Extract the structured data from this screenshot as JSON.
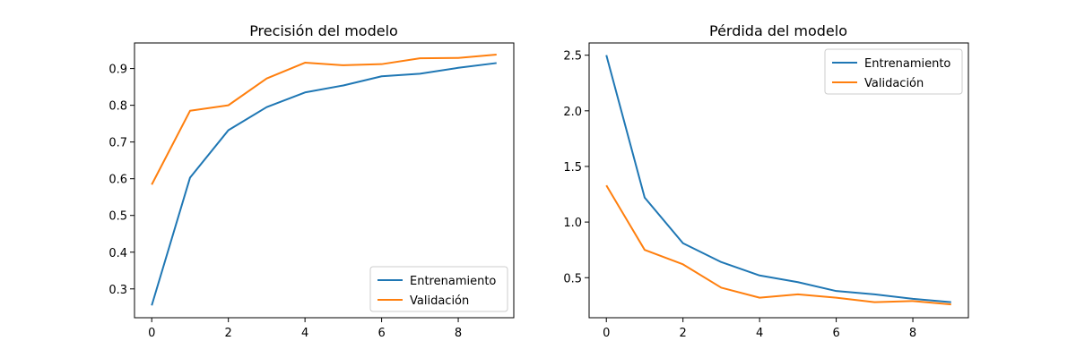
{
  "chart_data": [
    {
      "type": "line",
      "title": "Precisión del modelo",
      "xlabel": "",
      "ylabel": "",
      "x": [
        0,
        1,
        2,
        3,
        4,
        5,
        6,
        7,
        8,
        9
      ],
      "xlim": [
        -0.45,
        9.45
      ],
      "ylim": [
        0.2215,
        0.9697
      ],
      "xticks": [
        0,
        2,
        4,
        6,
        8
      ],
      "xtick_labels": [
        "0",
        "2",
        "4",
        "6",
        "8"
      ],
      "yticks": [
        0.3,
        0.4,
        0.5,
        0.6,
        0.7,
        0.8,
        0.9
      ],
      "ytick_labels": [
        "0.3",
        "0.4",
        "0.5",
        "0.6",
        "0.7",
        "0.8",
        "0.9"
      ],
      "grid": false,
      "legend_position": "lower-right",
      "series": [
        {
          "name": "Entrenamiento",
          "color": "#1f77b4",
          "values": [
            0.255,
            0.603,
            0.732,
            0.795,
            0.835,
            0.854,
            0.879,
            0.886,
            0.902,
            0.915
          ]
        },
        {
          "name": "Validación",
          "color": "#ff7f0e",
          "values": [
            0.584,
            0.785,
            0.8,
            0.873,
            0.916,
            0.909,
            0.912,
            0.928,
            0.929,
            0.938
          ]
        }
      ]
    },
    {
      "type": "line",
      "title": "Pérdida del modelo",
      "xlabel": "",
      "ylabel": "",
      "x": [
        0,
        1,
        2,
        3,
        4,
        5,
        6,
        7,
        8,
        9
      ],
      "xlim": [
        -0.45,
        9.45
      ],
      "ylim": [
        0.14,
        2.61
      ],
      "xticks": [
        0,
        2,
        4,
        6,
        8
      ],
      "xtick_labels": [
        "0",
        "2",
        "4",
        "6",
        "8"
      ],
      "yticks": [
        0.5,
        1.0,
        1.5,
        2.0,
        2.5
      ],
      "ytick_labels": [
        "0.5",
        "1.0",
        "1.5",
        "2.0",
        "2.5"
      ],
      "grid": false,
      "legend_position": "upper-right",
      "series": [
        {
          "name": "Entrenamiento",
          "color": "#1f77b4",
          "values": [
            2.5,
            1.22,
            0.81,
            0.64,
            0.52,
            0.46,
            0.38,
            0.35,
            0.31,
            0.28
          ]
        },
        {
          "name": "Validación",
          "color": "#ff7f0e",
          "values": [
            1.33,
            0.75,
            0.62,
            0.41,
            0.32,
            0.35,
            0.32,
            0.28,
            0.29,
            0.26
          ]
        }
      ]
    }
  ]
}
